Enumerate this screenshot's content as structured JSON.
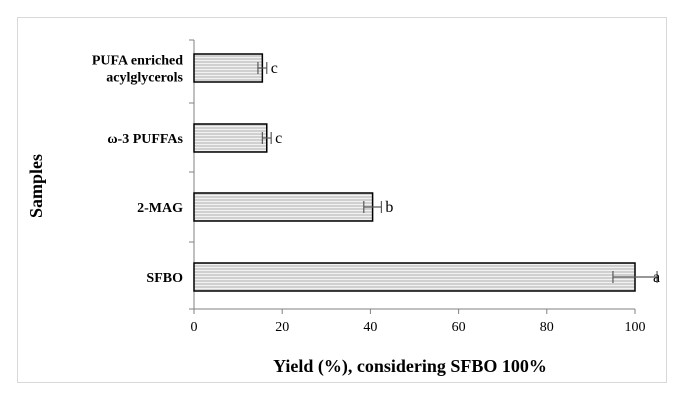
{
  "chart_data": {
    "type": "bar",
    "orientation": "horizontal",
    "categories": [
      "SFBO",
      "2-MAG",
      "ω-3 PUFFAs",
      "PUFA enriched acylglycerols"
    ],
    "category_label_lines": [
      [
        "SFBO"
      ],
      [
        "2-MAG"
      ],
      [
        "ω-3 PUFFAs"
      ],
      [
        "PUFA enriched",
        "acylglycerols"
      ]
    ],
    "values": [
      100,
      40.5,
      16.5,
      15.5
    ],
    "error": [
      5,
      2,
      1,
      1
    ],
    "significance": [
      "a",
      "b",
      "c",
      "c"
    ],
    "xlabel": "Yield (%), considering SFBO 100%",
    "ylabel": "Samples",
    "xlim": [
      0,
      100
    ],
    "xticks": [
      0,
      20,
      40,
      60,
      80,
      100
    ],
    "grid": false,
    "bar_fill": "#d0d0d0",
    "bar_stripe": "#f2f2f2",
    "bar_stroke": "#000000",
    "axis_color": "#808080"
  }
}
